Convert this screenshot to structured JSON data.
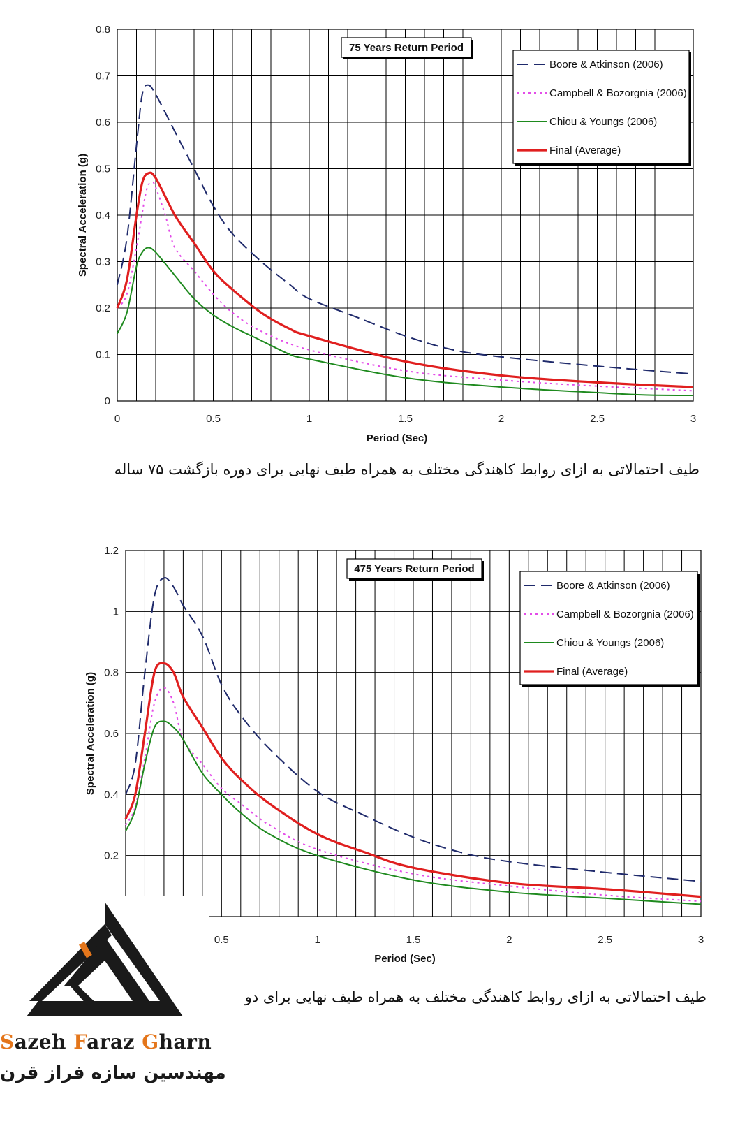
{
  "chart_data": [
    {
      "type": "line",
      "title": "75 Years Return Period",
      "xlabel": "Period (Sec)",
      "ylabel": "Spectral Acceleration (g)",
      "xlim": [
        0,
        3
      ],
      "ylim": [
        0,
        0.8
      ],
      "x_ticks": [
        "0",
        "0.5",
        "1",
        "1.5",
        "2",
        "2.5",
        "3"
      ],
      "y_ticks": [
        "0",
        "0.1",
        "0.2",
        "0.3",
        "0.4",
        "0.5",
        "0.6",
        "0.7",
        "0.8"
      ],
      "grid": true,
      "legend_position": "top-right",
      "series": [
        {
          "name": "Boore & Atkinson (2006)",
          "color": "#1f2a6b",
          "style": "dashed",
          "x": [
            0,
            0.05,
            0.1,
            0.13,
            0.16,
            0.2,
            0.3,
            0.4,
            0.5,
            0.6,
            0.75,
            0.9,
            1.0,
            1.25,
            1.5,
            1.75,
            2.0,
            2.5,
            3.0
          ],
          "y": [
            0.25,
            0.35,
            0.55,
            0.66,
            0.68,
            0.66,
            0.58,
            0.5,
            0.42,
            0.36,
            0.3,
            0.25,
            0.22,
            0.18,
            0.14,
            0.11,
            0.095,
            0.075,
            0.058
          ]
        },
        {
          "name": "Campbell & Bozorgnia (2006)",
          "color": "#e34ce8",
          "style": "dotted",
          "x": [
            0,
            0.05,
            0.1,
            0.15,
            0.18,
            0.2,
            0.25,
            0.3,
            0.4,
            0.5,
            0.6,
            0.75,
            1.0,
            1.5,
            2.0,
            2.5,
            3.0
          ],
          "y": [
            0.2,
            0.23,
            0.33,
            0.45,
            0.47,
            0.46,
            0.4,
            0.33,
            0.28,
            0.23,
            0.19,
            0.15,
            0.11,
            0.065,
            0.045,
            0.032,
            0.022
          ]
        },
        {
          "name": "Chiou & Youngs (2006)",
          "color": "#1e8a1e",
          "style": "solid",
          "x": [
            0,
            0.05,
            0.1,
            0.13,
            0.16,
            0.2,
            0.3,
            0.4,
            0.5,
            0.6,
            0.75,
            0.9,
            1.0,
            1.5,
            2.0,
            2.5,
            2.75,
            3.0
          ],
          "y": [
            0.145,
            0.19,
            0.29,
            0.32,
            0.33,
            0.32,
            0.27,
            0.22,
            0.185,
            0.16,
            0.13,
            0.1,
            0.09,
            0.05,
            0.03,
            0.018,
            0.013,
            0.012
          ]
        },
        {
          "name": "Final (Average)",
          "color": "#e01f1f",
          "style": "solid",
          "x": [
            0,
            0.05,
            0.1,
            0.13,
            0.16,
            0.2,
            0.3,
            0.4,
            0.5,
            0.6,
            0.75,
            0.9,
            1.0,
            1.5,
            2.0,
            2.5,
            3.0
          ],
          "y": [
            0.2,
            0.26,
            0.4,
            0.47,
            0.49,
            0.48,
            0.4,
            0.34,
            0.28,
            0.24,
            0.19,
            0.155,
            0.14,
            0.085,
            0.055,
            0.04,
            0.03
          ]
        }
      ]
    },
    {
      "type": "line",
      "title": "475 Years Return Period",
      "xlabel": "Period (Sec)",
      "ylabel": "Spectral Acceleration (g)",
      "xlim": [
        0,
        3
      ],
      "ylim": [
        0,
        1.2
      ],
      "x_ticks": [
        "0.5",
        "1",
        "1.5",
        "2",
        "2.5",
        "3"
      ],
      "y_ticks": [
        "0.2",
        "0.4",
        "0.6",
        "0.8",
        "1",
        "1.2"
      ],
      "grid": true,
      "legend_position": "top-right",
      "series": [
        {
          "name": "Boore & Atkinson (2006)",
          "color": "#1f2a6b",
          "style": "dashed",
          "x": [
            0,
            0.05,
            0.1,
            0.15,
            0.2,
            0.25,
            0.3,
            0.4,
            0.5,
            0.6,
            0.75,
            1.0,
            1.25,
            1.5,
            1.75,
            2.0,
            2.5,
            3.0
          ],
          "y": [
            0.4,
            0.5,
            0.8,
            1.05,
            1.11,
            1.08,
            1.02,
            0.92,
            0.76,
            0.66,
            0.55,
            0.41,
            0.33,
            0.26,
            0.21,
            0.18,
            0.145,
            0.115
          ]
        },
        {
          "name": "Campbell & Bozorgnia (2006)",
          "color": "#e34ce8",
          "style": "dotted",
          "x": [
            0,
            0.05,
            0.1,
            0.15,
            0.2,
            0.25,
            0.3,
            0.4,
            0.5,
            0.6,
            0.75,
            1.0,
            1.5,
            2.0,
            2.5,
            3.0
          ],
          "y": [
            0.3,
            0.36,
            0.52,
            0.7,
            0.75,
            0.7,
            0.58,
            0.5,
            0.42,
            0.37,
            0.3,
            0.22,
            0.14,
            0.1,
            0.07,
            0.05
          ]
        },
        {
          "name": "Chiou & Youngs (2006)",
          "color": "#1e8a1e",
          "style": "solid",
          "x": [
            0,
            0.05,
            0.1,
            0.15,
            0.2,
            0.25,
            0.3,
            0.4,
            0.5,
            0.6,
            0.75,
            1.0,
            1.5,
            2.0,
            2.5,
            3.0
          ],
          "y": [
            0.28,
            0.35,
            0.5,
            0.62,
            0.64,
            0.62,
            0.58,
            0.47,
            0.4,
            0.34,
            0.27,
            0.2,
            0.12,
            0.08,
            0.06,
            0.04
          ]
        },
        {
          "name": "Final (Average)",
          "color": "#e01f1f",
          "style": "solid",
          "x": [
            0,
            0.05,
            0.1,
            0.15,
            0.2,
            0.25,
            0.3,
            0.4,
            0.5,
            0.6,
            0.75,
            1.0,
            1.25,
            1.5,
            2.0,
            2.5,
            3.0
          ],
          "y": [
            0.32,
            0.4,
            0.6,
            0.8,
            0.83,
            0.8,
            0.72,
            0.62,
            0.52,
            0.45,
            0.37,
            0.27,
            0.21,
            0.16,
            0.11,
            0.09,
            0.065
          ]
        }
      ]
    }
  ],
  "captions": [
    "طیف احتمالاتی به ازای روابط کاهندگی مختلف به همراه طیف نهایی برای دوره بازگشت ۷۵ ساله",
    "طیف احتمالاتی به ازای روابط کاهندگی مختلف به همراه طیف نهایی برای دو"
  ],
  "logo": {
    "name_en_parts": [
      "S",
      "azeh ",
      "F",
      "araz ",
      "G",
      "harn"
    ],
    "name_fa": "مهندسین سازه فراز قرن",
    "accent_color": "#e4761b"
  }
}
